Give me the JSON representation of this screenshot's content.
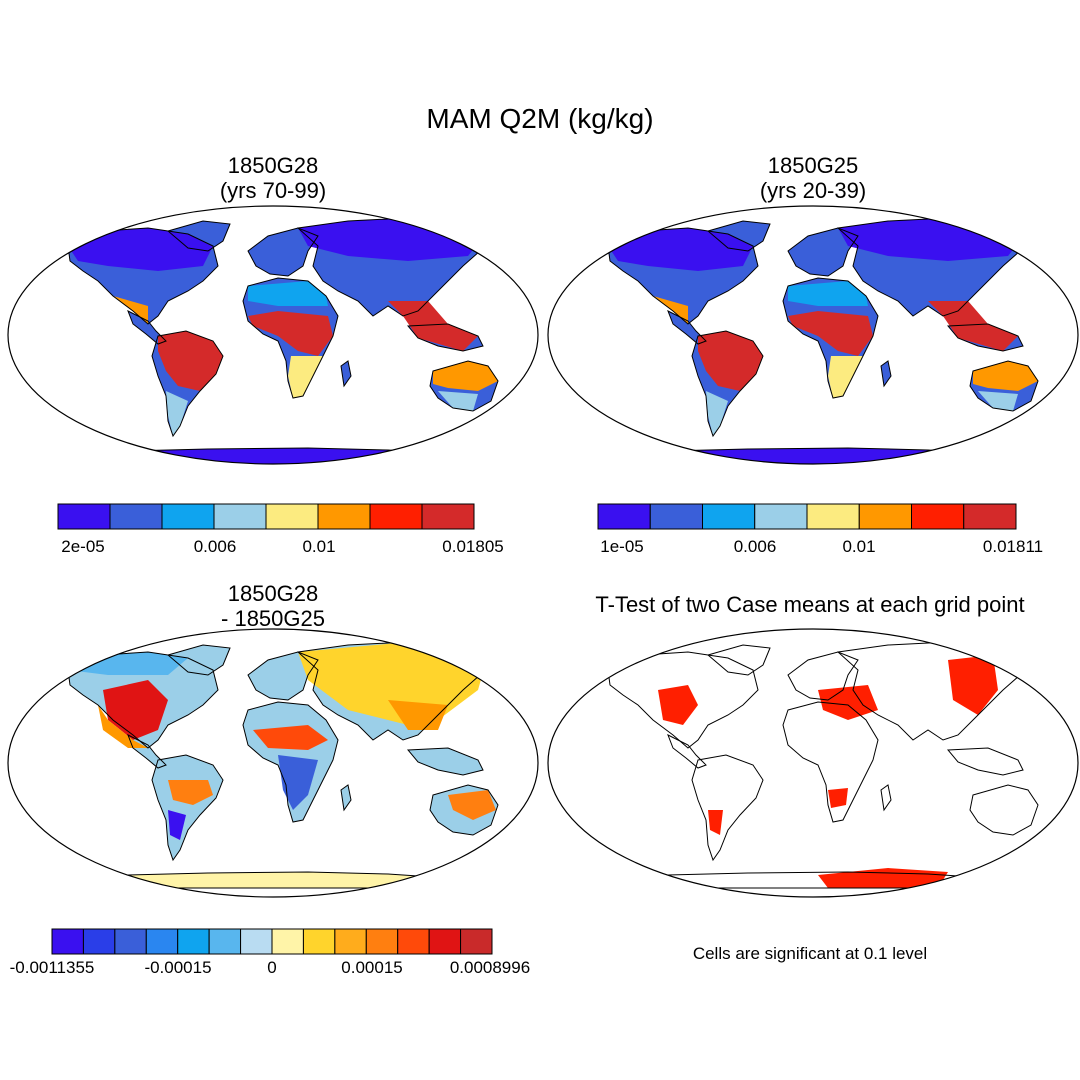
{
  "figure": {
    "title": "MAM Q2M (kg/kg)"
  },
  "panels": {
    "p1": {
      "title": "1850G28\n(yrs 70-99)"
    },
    "p2": {
      "title": "1850G25\n(yrs 20-39)"
    },
    "p3": {
      "title": "1850G28\n- 1850G25"
    },
    "p4": {
      "title": "T-Test of two Case means at each grid point"
    }
  },
  "colorbars": {
    "cb1": {
      "colors": [
        "#3a10f0",
        "#3a5fd9",
        "#0fa4ef",
        "#9bcfe8",
        "#fceb80",
        "#ff9800",
        "#ff1f00",
        "#d42a2a"
      ],
      "labels": [
        "2e-05",
        "0.006",
        "0.01",
        "0.01805"
      ]
    },
    "cb2": {
      "colors": [
        "#3a10f0",
        "#3a5fd9",
        "#0fa4ef",
        "#9bcfe8",
        "#fceb80",
        "#ff9800",
        "#ff1f00",
        "#d42a2a"
      ],
      "labels": [
        "1e-05",
        "0.006",
        "0.01",
        "0.01811"
      ]
    },
    "cb3": {
      "colors": [
        "#3a10f0",
        "#2a3ee8",
        "#3a5fd9",
        "#2a86f0",
        "#0fa4ef",
        "#58b6ee",
        "#b9dcf2",
        "#fff4a8",
        "#ffd42c",
        "#ffac1c",
        "#ff7f10",
        "#ff4a0a",
        "#e01414",
        "#c92a2a"
      ],
      "labels": [
        "-0.0011355",
        "-0.00015",
        "0",
        "0.00015",
        "0.0008996"
      ]
    }
  },
  "note": "Cells are significant at 0.1 level",
  "colors": {
    "land_dry": "#3a10f0",
    "land_moist": "#d42a2a",
    "significant": "#ff1f00",
    "antarctica_diff": "#fff4a8"
  }
}
